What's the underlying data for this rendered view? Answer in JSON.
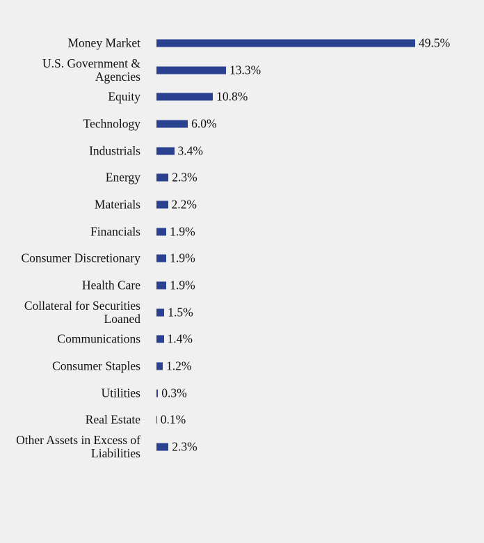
{
  "chart_data": {
    "type": "bar",
    "orientation": "horizontal",
    "color": "#2a4190",
    "categories": [
      "Money Market",
      "U.S. Government & Agencies",
      "Equity",
      "Technology",
      "Industrials",
      "Energy",
      "Materials",
      "Financials",
      "Consumer Discretionary",
      "Health Care",
      "Collateral for Securities Loaned",
      "Communications",
      "Consumer Staples",
      "Utilities",
      "Real Estate",
      "Other Assets in Excess of Liabilities"
    ],
    "values": [
      49.5,
      13.3,
      10.8,
      6.0,
      3.4,
      2.3,
      2.2,
      1.9,
      1.9,
      1.9,
      1.5,
      1.4,
      1.2,
      0.3,
      0.1,
      2.3
    ],
    "value_labels": [
      "49.5%",
      "13.3%",
      "10.8%",
      "6.0%",
      "3.4%",
      "2.3%",
      "2.2%",
      "1.9%",
      "1.9%",
      "1.9%",
      "1.5%",
      "1.4%",
      "1.2%",
      "0.3%",
      "0.1%",
      "2.3%"
    ]
  }
}
